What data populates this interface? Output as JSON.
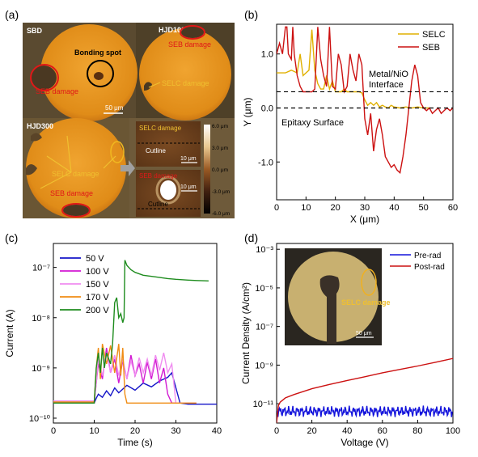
{
  "panels": {
    "a": {
      "label": "(a)",
      "sbd": {
        "title": "SBD",
        "bonding_label": "Bonding spot",
        "seb_label": "SEB damage",
        "scale_label": "50 μm"
      },
      "hjd100": {
        "title": "HJD100",
        "seb_label": "SEB damage",
        "selc_label": "SELC damage"
      },
      "hjd300": {
        "title": "HJD300",
        "selc_label": "SELC damage",
        "seb_label": "SEB damage"
      },
      "afm_top": {
        "title": "SELC damage",
        "cutline": "Cutline",
        "scale": "10 μm"
      },
      "afm_bottom": {
        "title": "SEB damage",
        "cutline": "Cutline",
        "scale": "10 μm"
      },
      "colorbar_ticks": [
        "6.0 μm",
        "3.0 μm",
        "0.0 μm",
        "-3.0 μm",
        "-6.0 μm"
      ]
    },
    "b": {
      "label": "(b)"
    },
    "c": {
      "label": "(c)"
    },
    "d": {
      "label": "(d)",
      "inset_label": "SELC damage",
      "inset_scale": "50 μm"
    }
  },
  "colors": {
    "selc": "#e0b000",
    "seb": "#cc1111",
    "v50": "#1414c8",
    "v100": "#d21ad2",
    "v150": "#f08cf0",
    "v170": "#f08c14",
    "v200": "#1e8c1e",
    "pre": "#1414dc",
    "post": "#cc1111",
    "circle_fill": "#e8961e"
  },
  "chart_data": [
    {
      "type": "line",
      "xlabel": "X (μm)",
      "ylabel": "Y (μm)",
      "xlim": [
        0,
        60
      ],
      "ylim": [
        -1.7,
        1.55
      ],
      "xticks": [
        "0",
        "10",
        "20",
        "30",
        "40",
        "50",
        "60"
      ],
      "yticks": [
        "1.0",
        "0.0",
        "-1.0"
      ],
      "ytick_values": [
        1.0,
        0.0,
        -1.0
      ],
      "reference_lines": [
        {
          "label": "Metal/NiO Interface",
          "y": 0.3
        },
        {
          "label": "Epitaxy Surface",
          "y": 0.0
        }
      ],
      "annotation_interface": "Metal/NiO\nInterface",
      "annotation_interface_1": "Metal/NiO",
      "annotation_interface_2": "Interface",
      "annotation_epitaxy": "Epitaxy Surface",
      "legend_placement": "top-right",
      "series": [
        {
          "name": "SELC",
          "color_key": "selc",
          "x": [
            0,
            3,
            5,
            7,
            8,
            9,
            10,
            11,
            12,
            13,
            14,
            15,
            16,
            17,
            18,
            19,
            20,
            21,
            22,
            23,
            24,
            25,
            26,
            27,
            28,
            29,
            30,
            31,
            32,
            33,
            34,
            35,
            36,
            37,
            38,
            39,
            40,
            42,
            44,
            46,
            48,
            50,
            52
          ],
          "values": [
            0.65,
            0.65,
            0.7,
            0.65,
            1.0,
            0.6,
            0.65,
            0.7,
            1.45,
            0.7,
            0.45,
            0.35,
            0.35,
            0.6,
            0.35,
            0.5,
            0.3,
            0.3,
            0.3,
            0.35,
            0.3,
            0.3,
            0.3,
            0.3,
            0.3,
            0.28,
            0.15,
            0.05,
            0.1,
            0.05,
            0.1,
            0.02,
            0.05,
            0.02,
            0.0,
            0.05,
            0.02,
            0.0,
            0.02,
            0.0,
            0.02,
            0.0,
            0.0
          ]
        },
        {
          "name": "SEB",
          "color_key": "seb",
          "x": [
            0,
            1,
            2,
            3,
            3.5,
            4,
            5,
            5.5,
            6,
            7,
            8,
            9,
            10,
            11,
            12,
            13,
            14,
            15,
            16,
            17,
            18,
            19,
            20,
            21,
            22,
            23,
            24,
            25,
            26,
            27,
            28,
            29,
            30,
            31,
            32,
            33,
            34,
            35,
            36,
            37,
            38,
            39,
            40,
            41,
            42,
            43,
            44,
            45,
            46,
            47,
            48,
            49,
            50,
            51,
            52,
            53,
            54,
            55,
            56,
            57,
            58,
            59,
            60
          ],
          "values": [
            1.0,
            1.2,
            1.0,
            1.5,
            1.5,
            1.0,
            0.9,
            1.5,
            1.0,
            0.6,
            0.4,
            0.3,
            0.3,
            0.3,
            0.3,
            0.35,
            1.5,
            0.9,
            0.6,
            0.4,
            1.5,
            0.4,
            0.35,
            1.0,
            0.8,
            0.3,
            0.4,
            1.0,
            0.7,
            0.5,
            1.0,
            0.8,
            -0.2,
            -0.5,
            -0.1,
            -0.8,
            -0.4,
            -0.2,
            -0.5,
            -0.9,
            -1.0,
            -1.1,
            -1.05,
            -1.15,
            -1.2,
            -0.9,
            -0.5,
            0.0,
            0.5,
            0.8,
            0.6,
            0.1,
            0.0,
            -0.05,
            0.0,
            -0.1,
            -0.05,
            0.0,
            -0.1,
            -0.05,
            0.0,
            -0.05,
            0.0
          ]
        }
      ]
    },
    {
      "type": "line",
      "xlabel": "Time (s)",
      "ylabel": "Current (A)",
      "xlim": [
        0,
        40
      ],
      "ylog": true,
      "ylim": [
        8e-11,
        3e-07
      ],
      "xticks": [
        "0",
        "10",
        "20",
        "30",
        "40"
      ],
      "yticks": [
        "10⁻¹⁰",
        "10⁻⁹",
        "10⁻⁸",
        "10⁻⁷"
      ],
      "ytick_values": [
        1e-10,
        1e-09,
        1e-08,
        1e-07
      ],
      "legend_placement": "top-left",
      "series": [
        {
          "name": "50 V",
          "color_key": "v50",
          "x": [
            0,
            5,
            10,
            10.5,
            11,
            12,
            13,
            14,
            15,
            16,
            18,
            20,
            22,
            24,
            26,
            28,
            29,
            30,
            31,
            33,
            35,
            37,
            40
          ],
          "values": [
            2e-10,
            2e-10,
            2e-10,
            2.5e-10,
            3e-10,
            2.6e-10,
            3.5e-10,
            2.8e-10,
            4e-10,
            3.2e-10,
            4.5e-10,
            3.6e-10,
            5e-10,
            4.2e-10,
            5.5e-10,
            6.5e-10,
            8e-10,
            4e-10,
            2e-10,
            1.9e-10,
            1.9e-10,
            1.9e-10,
            1.9e-10
          ]
        },
        {
          "name": "100 V",
          "color_key": "v100",
          "x": [
            0,
            5,
            10,
            10.5,
            11,
            12,
            13,
            14,
            15,
            16,
            17,
            18,
            19,
            20,
            21,
            22,
            23,
            24,
            25,
            26,
            27,
            28,
            29,
            30
          ],
          "values": [
            2e-10,
            2e-10,
            2e-10,
            5e-10,
            1.2e-09,
            6e-10,
            2.5e-09,
            8e-10,
            1.5e-09,
            5e-10,
            1.4e-09,
            6e-10,
            1.8e-09,
            7e-10,
            1.2e-09,
            5e-10,
            1.3e-09,
            6e-10,
            1.5e-09,
            5e-10,
            1e-09,
            3e-10,
            2e-10,
            2e-10
          ]
        },
        {
          "name": "150 V",
          "color_key": "v150",
          "x": [
            0,
            5,
            10,
            10.5,
            11,
            12,
            13,
            14,
            15,
            16,
            17,
            18,
            19,
            20,
            21,
            22,
            23,
            24,
            25,
            26,
            27,
            28,
            29,
            30,
            32,
            35
          ],
          "values": [
            2.2e-10,
            2.2e-10,
            2.2e-10,
            5e-10,
            1.5e-09,
            7e-10,
            2e-09,
            8e-10,
            1.8e-09,
            7e-10,
            1.5e-09,
            6e-10,
            1.4e-09,
            7e-10,
            1.6e-09,
            8e-10,
            1.5e-09,
            7e-10,
            1.8e-09,
            9e-10,
            2e-09,
            8e-10,
            1.2e-09,
            2e-10,
            2e-10,
            2e-10
          ]
        },
        {
          "name": "170 V",
          "color_key": "v170",
          "x": [
            0,
            5,
            10,
            10.5,
            11,
            11.5,
            12,
            13,
            14,
            15,
            16,
            16.5,
            17,
            17.5,
            18,
            20,
            25,
            30,
            35
          ],
          "values": [
            2.1e-10,
            2.1e-10,
            2.1e-10,
            1e-09,
            2.5e-09,
            6e-10,
            3e-09,
            1.2e-09,
            2.8e-09,
            8e-10,
            3e-09,
            7e-10,
            2.5e-09,
            3e-10,
            2e-10,
            2e-10,
            2e-10,
            2e-10,
            2e-10
          ]
        },
        {
          "name": "200 V",
          "color_key": "v200",
          "x": [
            0,
            5,
            10,
            10.5,
            11,
            11.5,
            12,
            12.5,
            13,
            14,
            14.5,
            15,
            15.5,
            16,
            16.5,
            17,
            17.3,
            17.5,
            18,
            19,
            20,
            22,
            25,
            28,
            30,
            33,
            35,
            38
          ],
          "values": [
            2e-10,
            2e-10,
            2e-10,
            1e-09,
            2e-09,
            8e-10,
            2.5e-09,
            1e-09,
            2e-09,
            1.2e-09,
            3e-09,
            2e-08,
            2.5e-08,
            1e-08,
            1.2e-08,
            8e-09,
            1e-08,
            1.4e-07,
            1.1e-07,
            9e-08,
            8e-08,
            7e-08,
            6.5e-08,
            6e-08,
            5.8e-08,
            5.6e-08,
            5.5e-08,
            5.4e-08
          ]
        }
      ]
    },
    {
      "type": "line",
      "xlabel": "Voltage (V)",
      "ylabel": "Current Density (A/cm²)",
      "xlim": [
        0,
        100
      ],
      "ylog": true,
      "ylim": [
        1e-12,
        0.002
      ],
      "xticks": [
        "0",
        "20",
        "40",
        "60",
        "80",
        "100"
      ],
      "yticks": [
        "10⁻³",
        "10⁻⁵",
        "10⁻⁷",
        "10⁻⁹",
        "10⁻¹¹"
      ],
      "ytick_values": [
        0.001,
        1e-05,
        1e-07,
        1e-09,
        1e-11
      ],
      "legend_placement": "top-right",
      "series": [
        {
          "name": "Pre-rad",
          "color_key": "pre",
          "x": [
            0,
            100
          ],
          "values": [
            4e-12,
            4e-12
          ]
        },
        {
          "name": "Post-rad",
          "color_key": "post",
          "x": [
            0,
            1,
            2,
            5,
            10,
            20,
            30,
            40,
            50,
            60,
            70,
            80,
            90,
            100
          ],
          "values": [
            1e-12,
            8e-12,
            1.2e-11,
            2e-11,
            3e-11,
            6e-11,
            1e-10,
            1.6e-10,
            2.5e-10,
            4e-10,
            6e-10,
            9e-10,
            1.4e-09,
            2.2e-09
          ]
        }
      ]
    }
  ]
}
